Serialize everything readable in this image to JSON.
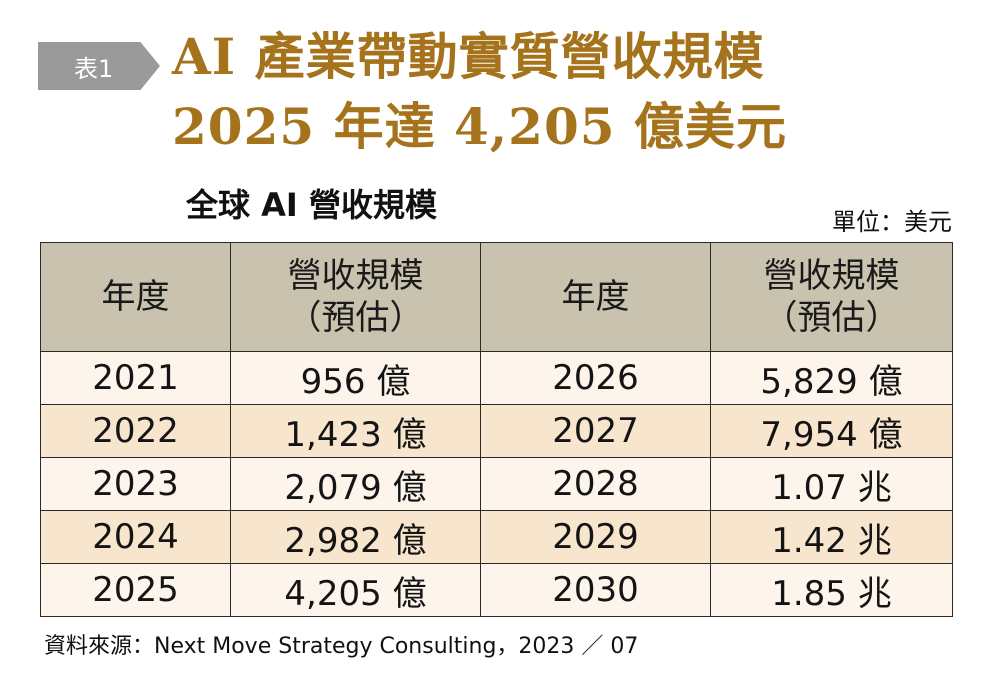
{
  "tag": "表1",
  "title": {
    "line1": "AI 產業帶動實質營收規模",
    "line2": "2025 年達 4,205 億美元"
  },
  "subtitle": "全球 AI 營收規模",
  "unit": "單位：美元",
  "table": {
    "headers": [
      {
        "main": "年度",
        "sub": ""
      },
      {
        "main": "營收規模",
        "sub": "（預估）"
      },
      {
        "main": "年度",
        "sub": ""
      },
      {
        "main": "營收規模",
        "sub": "（預估）"
      }
    ],
    "rows": [
      [
        "2021",
        "956 億",
        "2026",
        "5,829 億"
      ],
      [
        "2022",
        "1,423 億",
        "2027",
        "7,954 億"
      ],
      [
        "2023",
        "2,079 億",
        "2028",
        "1.07 兆"
      ],
      [
        "2024",
        "2,982 億",
        "2029",
        "1.42 兆"
      ],
      [
        "2025",
        "4,205 億",
        "2030",
        "1.85 兆"
      ]
    ]
  },
  "source": "資料來源：Next Move Strategy Consulting，2023 ／ 07"
}
